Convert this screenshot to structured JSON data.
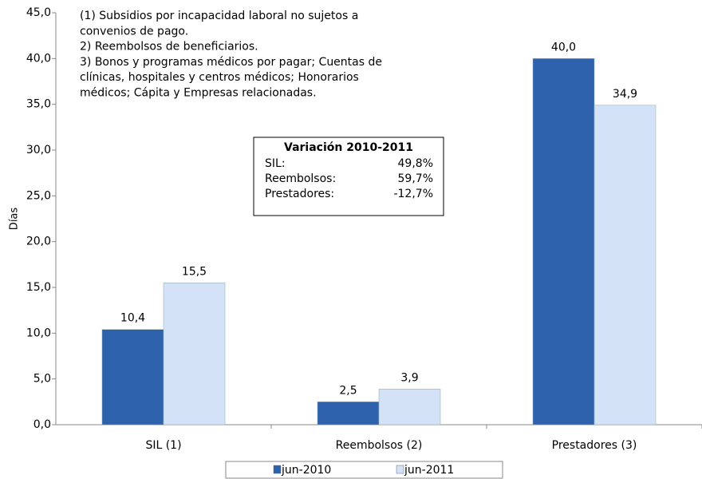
{
  "chart_data": {
    "type": "bar",
    "y_label": "Días",
    "categories": [
      "SIL (1)",
      "Reembolsos (2)",
      "Prestadores (3)"
    ],
    "series": [
      {
        "name": "jun-2010",
        "color": "#2f62ad",
        "values": [
          10.4,
          2.5,
          40.0
        ],
        "value_labels": [
          "10,4",
          "2,5",
          "40,0"
        ]
      },
      {
        "name": "jun-2011",
        "color": "#d3e2f6",
        "values": [
          15.5,
          3.9,
          34.9
        ],
        "value_labels": [
          "15,5",
          "3,9",
          "34,9"
        ]
      }
    ],
    "ylim": [
      0,
      45
    ],
    "yticks": [
      {
        "value": 0,
        "label": "0,0"
      },
      {
        "value": 5,
        "label": "5,0"
      },
      {
        "value": 10,
        "label": "10,0"
      },
      {
        "value": 15,
        "label": "15,0"
      },
      {
        "value": 20,
        "label": "20,0"
      },
      {
        "value": 25,
        "label": "25,0"
      },
      {
        "value": 30,
        "label": "30,0"
      },
      {
        "value": 35,
        "label": "35,0"
      },
      {
        "value": 40,
        "label": "40,0"
      },
      {
        "value": 45,
        "label": "45,0"
      }
    ],
    "notes": [
      "(1) Subsidios por incapacidad laboral no sujetos a",
      "convenios de pago.",
      "2) Reembolsos de beneficiarios.",
      "3) Bonos y programas médicos por pagar; Cuentas de",
      "clínicas, hospitales y centros médicos; Honorarios",
      "médicos; Cápita y Empresas relacionadas."
    ],
    "variation_box": {
      "title": "Variación 2010-2011",
      "rows": [
        {
          "label": "SIL:",
          "value": "49,8%"
        },
        {
          "label": "Reembolsos:",
          "value": "59,7%"
        },
        {
          "label": "Prestadores:",
          "value": "-12,7%"
        }
      ]
    }
  }
}
